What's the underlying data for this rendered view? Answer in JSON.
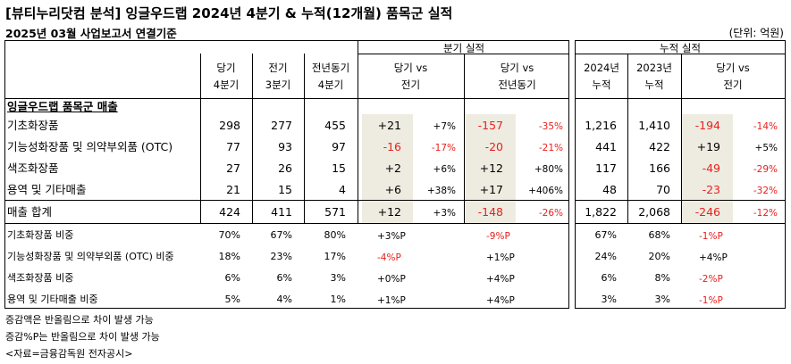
{
  "title": "[뷰티누리닷컴 분석] 잉글우드랩 2024년 4분기 & 누적(12개월) 품목군 실적",
  "subtitle": "2025년 03월 사업보고서 연결기준",
  "unit": "(단위: 억원)",
  "headers": {
    "quarterly_group": "분기 실적",
    "cumulative_group": "누적 실적",
    "cur_q_1": "당기",
    "cur_q_2": "4분기",
    "prev_q_1": "전기",
    "prev_q_2": "3분기",
    "yoy_q_1": "전년동기",
    "yoy_q_2": "4분기",
    "vs_prev_1": "당기 vs",
    "vs_prev_2": "전기",
    "vs_yoy_1": "당기 vs",
    "vs_yoy_2": "전년동기",
    "y2024_1": "2024년",
    "y2024_2": "누적",
    "y2023_1": "2023년",
    "y2023_2": "누적",
    "vs_cum_1": "당기 vs",
    "vs_cum_2": "전기"
  },
  "section_label": "잉글우드랩 품목군 매출",
  "rows": [
    {
      "label": "기초화장품",
      "cur": "298",
      "prev": "277",
      "yoy": "455",
      "d_prev": "+21",
      "p_prev": "+7%",
      "d_yoy": "-157",
      "p_yoy": "-35%",
      "c24": "1,216",
      "c23": "1,410",
      "d_cum": "-194",
      "p_cum": "-14%"
    },
    {
      "label": "기능성화장품 및 의약부외품 (OTC)",
      "cur": "77",
      "prev": "93",
      "yoy": "97",
      "d_prev": "-16",
      "p_prev": "-17%",
      "d_yoy": "-20",
      "p_yoy": "-21%",
      "c24": "441",
      "c23": "422",
      "d_cum": "+19",
      "p_cum": "+5%"
    },
    {
      "label": "색조화장품",
      "cur": "27",
      "prev": "26",
      "yoy": "15",
      "d_prev": "+2",
      "p_prev": "+6%",
      "d_yoy": "+12",
      "p_yoy": "+80%",
      "c24": "117",
      "c23": "166",
      "d_cum": "-49",
      "p_cum": "-29%"
    },
    {
      "label": "용역 및 기타매출",
      "cur": "21",
      "prev": "15",
      "yoy": "4",
      "d_prev": "+6",
      "p_prev": "+38%",
      "d_yoy": "+17",
      "p_yoy": "+406%",
      "c24": "48",
      "c23": "70",
      "d_cum": "-23",
      "p_cum": "-32%"
    }
  ],
  "total": {
    "label": "매출 합계",
    "cur": "424",
    "prev": "411",
    "yoy": "571",
    "d_prev": "+12",
    "p_prev": "+3%",
    "d_yoy": "-148",
    "p_yoy": "-26%",
    "c24": "1,822",
    "c23": "2,068",
    "d_cum": "-246",
    "p_cum": "-12%"
  },
  "ratios": [
    {
      "label": "기초화장품 비중",
      "cur": "70%",
      "prev": "67%",
      "yoy": "80%",
      "d_prev": "+3%P",
      "d_yoy": "-9%P",
      "c24": "67%",
      "c23": "68%",
      "d_cum": "-1%P"
    },
    {
      "label": "기능성화장품 및 의약부외품 (OTC) 비중",
      "cur": "18%",
      "prev": "23%",
      "yoy": "17%",
      "d_prev": "-4%P",
      "d_yoy": "+1%P",
      "c24": "24%",
      "c23": "20%",
      "d_cum": "+4%P"
    },
    {
      "label": "색조화장품 비중",
      "cur": "6%",
      "prev": "6%",
      "yoy": "3%",
      "d_prev": "+0%P",
      "d_yoy": "+4%P",
      "c24": "6%",
      "c23": "8%",
      "d_cum": "-2%P"
    },
    {
      "label": "용역 및 기타매출 비중",
      "cur": "5%",
      "prev": "4%",
      "yoy": "1%",
      "d_prev": "+1%P",
      "d_yoy": "+4%P",
      "c24": "3%",
      "c23": "3%",
      "d_cum": "-1%P"
    }
  ],
  "notes": [
    "증감액은 반올림으로 차이 발생 가능",
    "증감%P는 반올림으로 차이 발생 가능",
    "<자료=금융감독원 전자공시>"
  ],
  "colors": {
    "negative": "#e8201e",
    "shade": "#eeece1"
  }
}
